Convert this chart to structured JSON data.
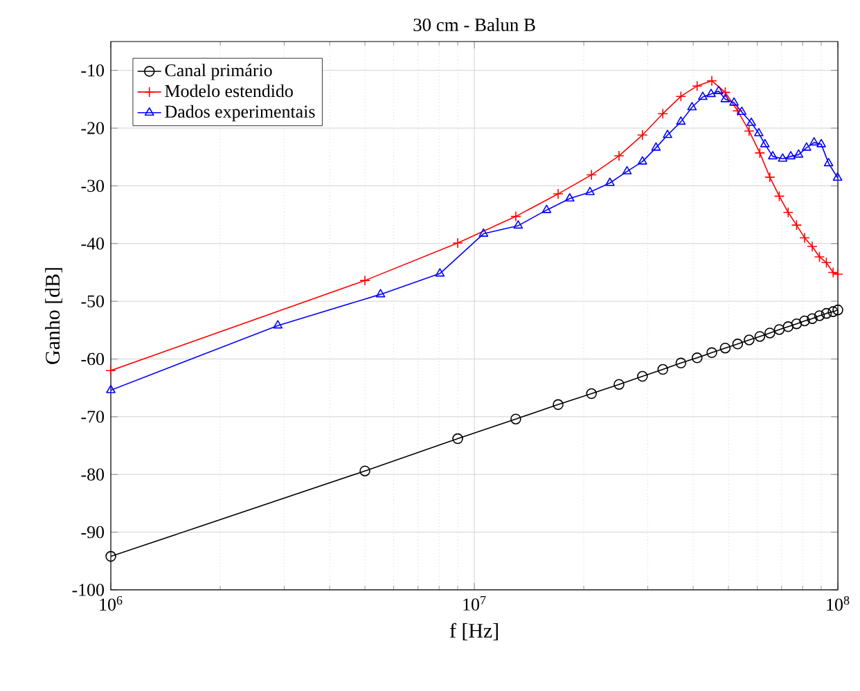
{
  "chart_data": {
    "type": "line",
    "title": "30 cm - Balun B",
    "xlabel": "f [Hz]",
    "ylabel": "Ganho [dB]",
    "log": "x",
    "grid": true,
    "legend": "top left",
    "xlim": [
      1000000,
      100000000
    ],
    "xticks": [
      {
        "value": 1000000,
        "label": "10$^{6}$"
      },
      {
        "value": 10000000,
        "label": "10$^{7}$"
      },
      {
        "value": 100000000,
        "label": "10$^{8}$"
      }
    ],
    "ylim": [
      -100,
      -5
    ],
    "yticks": [
      -100,
      -90,
      -80,
      -70,
      -60,
      -50,
      -40,
      -30,
      -20,
      -10
    ],
    "series": [
      {
        "name": "Canal primário",
        "color": "#000000",
        "marker": "circle",
        "x": [
          1000000,
          5000000,
          9000000,
          13000000,
          17000000,
          21000000,
          25000000,
          29000000,
          33000000,
          37000000,
          41000000,
          45000000,
          49000000,
          53000000,
          57000000,
          61000000,
          65000000,
          69000000,
          73000000,
          77000000,
          81000000,
          85000000,
          89000000,
          93000000,
          97000000,
          100000000
        ],
        "values": [
          -94.2,
          -79.4,
          -73.8,
          -70.4,
          -67.9,
          -66.0,
          -64.4,
          -63.0,
          -61.8,
          -60.7,
          -59.8,
          -58.9,
          -58.1,
          -57.4,
          -56.7,
          -56.1,
          -55.5,
          -54.9,
          -54.4,
          -53.9,
          -53.4,
          -53.0,
          -52.5,
          -52.1,
          -51.8,
          -51.5
        ]
      },
      {
        "name": "Modelo estendido",
        "color": "#ff0000",
        "marker": "cross",
        "x": [
          1000000,
          5000000,
          9000000,
          13000000,
          17000000,
          21000000,
          25000000,
          29000000,
          33000000,
          37000000,
          41000000,
          45000000,
          49000000,
          53000000,
          57000000,
          61000000,
          65000000,
          69000000,
          73000000,
          77000000,
          81000000,
          85000000,
          89000000,
          93000000,
          97000000,
          100000000
        ],
        "values": [
          -62.0,
          -46.4,
          -39.9,
          -35.3,
          -31.4,
          -28.1,
          -24.8,
          -21.2,
          -17.5,
          -14.5,
          -12.7,
          -11.8,
          -13.8,
          -17.0,
          -20.5,
          -24.3,
          -28.5,
          -31.8,
          -34.6,
          -36.8,
          -39.0,
          -40.5,
          -42.3,
          -43.3,
          -45.0,
          -45.3
        ]
      },
      {
        "name": "Dados experimentais",
        "color": "#0000ff",
        "marker": "triangle",
        "x": [
          1000000,
          2880000,
          5520000,
          8040000,
          10600000,
          13200000,
          15800000,
          18300000,
          20800000,
          23600000,
          26300000,
          29000000,
          31600000,
          34000000,
          37000000,
          39700000,
          42500000,
          44800000,
          47000000,
          49000000,
          51800000,
          54400000,
          57800000,
          60600000,
          63000000,
          66200000,
          70500000,
          74200000,
          78000000,
          82000000,
          86000000,
          90000000,
          94300000,
          99800000
        ],
        "values": [
          -65.4,
          -54.2,
          -48.8,
          -45.2,
          -38.3,
          -36.9,
          -34.2,
          -32.2,
          -31.1,
          -29.5,
          -27.5,
          -25.8,
          -23.4,
          -21.2,
          -18.9,
          -16.4,
          -14.6,
          -14.1,
          -13.6,
          -15.0,
          -15.6,
          -17.2,
          -19.1,
          -20.9,
          -22.8,
          -24.9,
          -25.3,
          -24.9,
          -24.6,
          -23.4,
          -22.5,
          -22.8,
          -26.1,
          -28.6
        ]
      }
    ]
  }
}
